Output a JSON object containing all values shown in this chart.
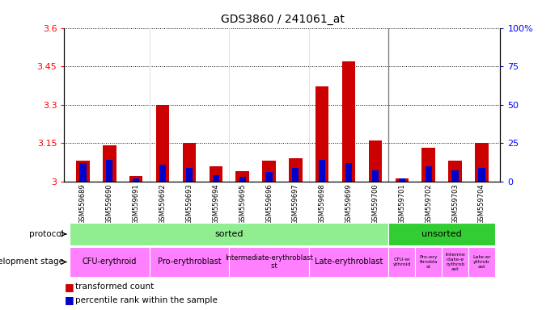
{
  "title": "GDS3860 / 241061_at",
  "samples": [
    "GSM559689",
    "GSM559690",
    "GSM559691",
    "GSM559692",
    "GSM559693",
    "GSM559694",
    "GSM559695",
    "GSM559696",
    "GSM559697",
    "GSM559698",
    "GSM559699",
    "GSM559700",
    "GSM559701",
    "GSM559702",
    "GSM559703",
    "GSM559704"
  ],
  "red_values": [
    3.08,
    3.14,
    3.02,
    3.3,
    3.15,
    3.06,
    3.04,
    3.08,
    3.09,
    3.37,
    3.47,
    3.16,
    3.01,
    3.13,
    3.08,
    3.15
  ],
  "blue_percentiles": [
    12,
    14,
    2,
    11,
    9,
    4,
    3,
    6,
    9,
    14,
    12,
    7,
    2,
    10,
    7,
    9
  ],
  "ylim_left": [
    3.0,
    3.6
  ],
  "ylim_right": [
    0,
    100
  ],
  "yticks_left": [
    3.0,
    3.15,
    3.3,
    3.45,
    3.6
  ],
  "yticks_right": [
    0,
    25,
    50,
    75,
    100
  ],
  "ytick_labels_left": [
    "3",
    "3.15",
    "3.3",
    "3.45",
    "3.6"
  ],
  "ytick_labels_right": [
    "0",
    "25",
    "50",
    "75",
    "100%"
  ],
  "protocol_groups": [
    {
      "label": "sorted",
      "start": 0,
      "end": 12,
      "color": "#90EE90"
    },
    {
      "label": "unsorted",
      "start": 12,
      "end": 16,
      "color": "#32CD32"
    }
  ],
  "stage_groups": [
    {
      "label": "CFU-erythroid",
      "start": 0,
      "end": 3,
      "color": "#FF80FF",
      "fontsize": 7
    },
    {
      "label": "Pro-erythroblast",
      "start": 3,
      "end": 6,
      "color": "#FF80FF",
      "fontsize": 7
    },
    {
      "label": "Intermediate-erythroblast\n     st",
      "start": 6,
      "end": 9,
      "color": "#FF80FF",
      "fontsize": 6
    },
    {
      "label": "Late-erythroblast",
      "start": 9,
      "end": 12,
      "color": "#FF80FF",
      "fontsize": 7
    },
    {
      "label": "CFU-er\nythroid",
      "start": 12,
      "end": 13,
      "color": "#FF80FF",
      "fontsize": 4.5
    },
    {
      "label": "Pro-ery\nthrobla\nst",
      "start": 13,
      "end": 14,
      "color": "#FF80FF",
      "fontsize": 4.5
    },
    {
      "label": "Interme\ndiate-e\nrythrob\nast",
      "start": 14,
      "end": 15,
      "color": "#FF80FF",
      "fontsize": 4.5
    },
    {
      "label": "Late-er\nythrob\nast",
      "start": 15,
      "end": 16,
      "color": "#FF80FF",
      "fontsize": 4.5
    }
  ],
  "bar_color_red": "#CC0000",
  "bar_color_blue": "#0000CC",
  "bg_color": "#FFFFFF",
  "bar_width": 0.5,
  "blue_bar_width": 0.25
}
